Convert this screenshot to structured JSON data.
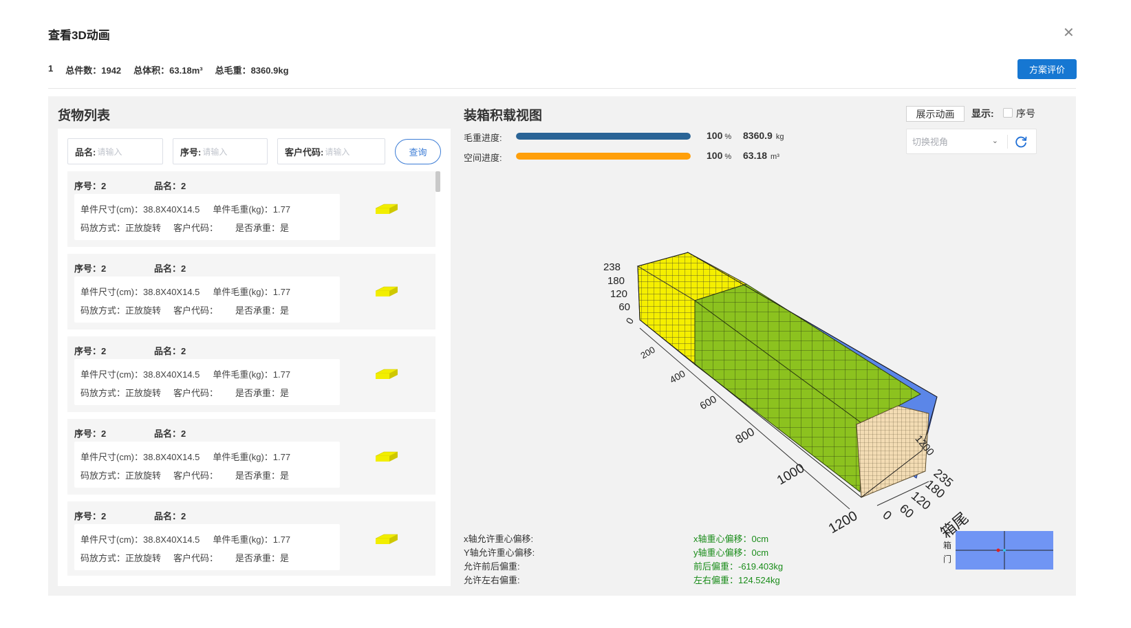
{
  "header": {
    "title": "查看3D动画",
    "close_icon": "close-icon"
  },
  "summary": {
    "index": "1",
    "total_count": "总件数：1942",
    "total_volume": "总体积：63.18m³",
    "total_weight": "总毛重：8360.9kg"
  },
  "toolbar": {
    "evaluate_label": "方案评价"
  },
  "cargo_list": {
    "title": "货物列表",
    "filters": [
      {
        "label": "品名:",
        "placeholder": "请输入"
      },
      {
        "label": "序号:",
        "placeholder": "请输入"
      },
      {
        "label": "客户代码:",
        "placeholder": "请输入"
      }
    ],
    "search_label": "查询",
    "items": [
      {
        "seq": "序号：2",
        "name": "品名：2",
        "size": "单件尺寸(cm)：38.8X40X14.5",
        "weight": "单件毛重(kg)：1.77",
        "placement": "码放方式：正放旋转",
        "customer": "客户代码：",
        "bearing": "是否承重：是",
        "color": "#f2ee00"
      },
      {
        "seq": "序号：2",
        "name": "品名：2",
        "size": "单件尺寸(cm)：38.8X40X14.5",
        "weight": "单件毛重(kg)：1.77",
        "placement": "码放方式：正放旋转",
        "customer": "客户代码：",
        "bearing": "是否承重：是",
        "color": "#f2ee00"
      },
      {
        "seq": "序号：2",
        "name": "品名：2",
        "size": "单件尺寸(cm)：38.8X40X14.5",
        "weight": "单件毛重(kg)：1.77",
        "placement": "码放方式：正放旋转",
        "customer": "客户代码：",
        "bearing": "是否承重：是",
        "color": "#f2ee00"
      },
      {
        "seq": "序号：2",
        "name": "品名：2",
        "size": "单件尺寸(cm)：38.8X40X14.5",
        "weight": "单件毛重(kg)：1.77",
        "placement": "码放方式：正放旋转",
        "customer": "客户代码：",
        "bearing": "是否承重：是",
        "color": "#f2ee00"
      },
      {
        "seq": "序号：2",
        "name": "品名：2",
        "size": "单件尺寸(cm)：38.8X40X14.5",
        "weight": "单件毛重(kg)：1.77",
        "placement": "码放方式：正放旋转",
        "customer": "客户代码：",
        "bearing": "是否承重：是",
        "color": "#f2ee00"
      }
    ]
  },
  "load_view": {
    "title": "装箱积载视图",
    "show_animation_label": "展示动画",
    "display_label": "显示:",
    "seq_checkbox_label": "序号",
    "seq_checkbox_checked": false,
    "view_select_placeholder": "切换视角",
    "refresh_icon": "refresh-icon",
    "weight_progress": {
      "label": "毛重进度:",
      "percent": 100,
      "percent_text": "100",
      "percent_unit": "%",
      "value": "8360.9",
      "unit": "kg",
      "color": "#2a6496"
    },
    "space_progress": {
      "label": "空间进度:",
      "percent": 100,
      "percent_text": "100",
      "percent_unit": "%",
      "value": "63.18",
      "unit": "m³",
      "color": "#ff9f0a"
    },
    "axis_labels": {
      "height_ticks": [
        "238",
        "180",
        "120",
        "60",
        "0"
      ],
      "length_ticks": [
        "0",
        "200",
        "400",
        "600",
        "800",
        "1000",
        "1200"
      ],
      "length_ticks_far": [
        "1200"
      ],
      "width_ticks": [
        "235",
        "180",
        "120",
        "60",
        "0"
      ],
      "rear_label": "箱尾"
    },
    "cargo_colors": {
      "front_block": "#f5ef00",
      "main_block": "#8cc21f",
      "rear_block": "#f3dcb4",
      "container_wall": "#5b86e8"
    },
    "metrics_left": [
      "x轴允许重心偏移:",
      "Y轴允许重心偏移:",
      "允许前后偏重:",
      "允许左右偏重:"
    ],
    "metrics_right": [
      "x轴重心偏移：0cm",
      "y轴重心偏移：0cm",
      "前后偏重：-619.403kg",
      "左右偏重：124.524kg"
    ],
    "minimap": {
      "door_label_top": "箱",
      "door_label_bottom": "门",
      "fill_color": "#7095f4"
    }
  }
}
